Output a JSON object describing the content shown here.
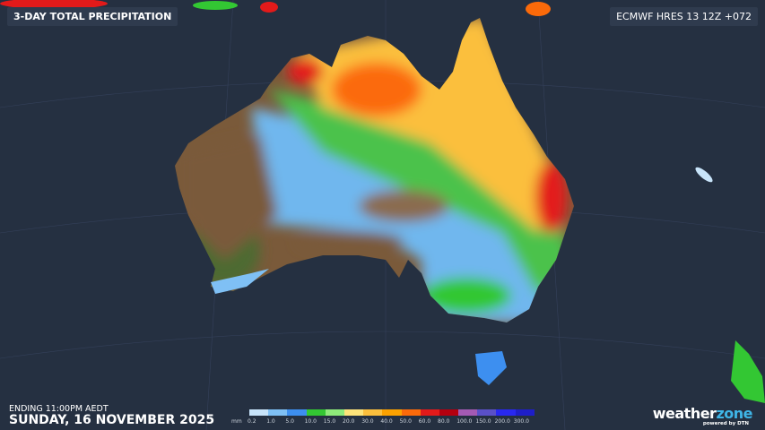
{
  "header": {
    "title": "3-DAY TOTAL PRECIPITATION",
    "model": "ECMWF HRES 13 12Z +072"
  },
  "footer": {
    "ending": "ENDING 11:00PM AEDT",
    "date": "SUNDAY, 16 NOVEMBER 2025"
  },
  "legend": {
    "unit": "mm",
    "labels": [
      "0.2",
      "1.0",
      "5.0",
      "10.0",
      "15.0",
      "20.0",
      "30.0",
      "40.0",
      "50.0",
      "60.0",
      "80.0",
      "100.0",
      "150.0",
      "200.0",
      "300.0"
    ],
    "colors": [
      "#c8e4fa",
      "#7fc0f5",
      "#3d8ff0",
      "#33c733",
      "#8eea7a",
      "#fde37a",
      "#fbbf3d",
      "#fba100",
      "#fb6a0a",
      "#e31a1a",
      "#b5000f",
      "#a45ab4",
      "#5a50c8",
      "#2828f0",
      "#1e1ec8"
    ]
  },
  "brand": {
    "name_a": "weather",
    "name_b": "zone",
    "tagline": "powered by DTN"
  }
}
